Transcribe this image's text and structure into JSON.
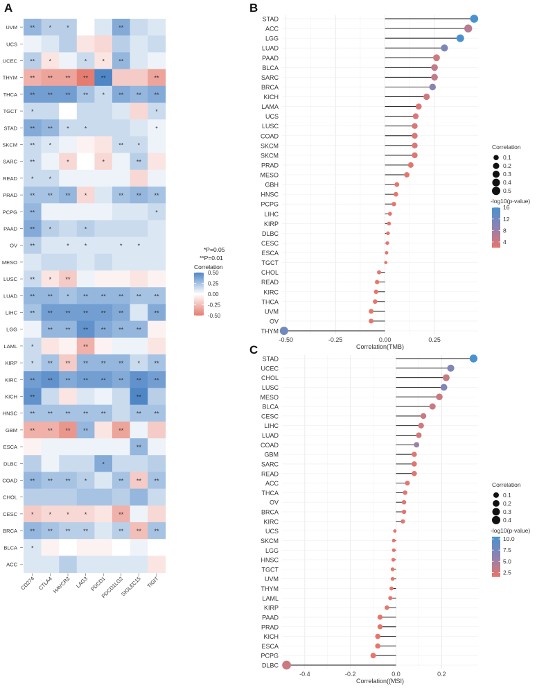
{
  "panel_letters": [
    "A",
    "B",
    "C"
  ],
  "chart_data": [
    {
      "panel": "A",
      "type": "heatmap",
      "rows": [
        "UVM",
        "UCS",
        "UCEC",
        "THYM",
        "THCA",
        "TGCT",
        "STAD",
        "SKCM",
        "SARC",
        "READ",
        "PRAD",
        "PCPG",
        "PAAD",
        "OV",
        "MESO",
        "LUSC",
        "LUAD",
        "LIHC",
        "LGG",
        "LAML",
        "KIRP",
        "KIRC",
        "KICH",
        "HNSC",
        "GBM",
        "ESCA",
        "DLBC",
        "COAD",
        "CHOL",
        "CESC",
        "BRCA",
        "BLCA",
        "ACC"
      ],
      "columns": [
        "CD274",
        "CTLA4",
        "HAVCR2",
        "LAG3",
        "PDCD1",
        "PDCD1LG2",
        "SIGLEC15",
        "TIGIT"
      ],
      "values": [
        [
          0.3,
          0.2,
          0.2,
          0.0,
          0.1,
          0.35,
          0.15,
          0.1
        ],
        [
          0.05,
          0.1,
          0.2,
          -0.1,
          -0.15,
          0.2,
          0.1,
          0.15
        ],
        [
          0.2,
          -0.1,
          0.05,
          0.15,
          -0.1,
          0.3,
          0.1,
          0.05
        ],
        [
          -0.3,
          -0.35,
          -0.35,
          -0.5,
          0.55,
          -0.2,
          -0.2,
          -0.35
        ],
        [
          0.4,
          0.4,
          0.4,
          0.25,
          0.15,
          0.35,
          0.3,
          0.35
        ],
        [
          0.15,
          0.15,
          0.0,
          0.15,
          0.15,
          0.1,
          -0.15,
          0.15
        ],
        [
          0.35,
          0.3,
          0.15,
          0.15,
          0.15,
          0.15,
          0.1,
          0.05
        ],
        [
          0.15,
          0.1,
          0.05,
          -0.05,
          -0.1,
          0.15,
          0.15,
          0.05
        ],
        [
          0.15,
          0.05,
          -0.15,
          0.0,
          -0.15,
          0.05,
          0.2,
          -0.1
        ],
        [
          0.15,
          0.15,
          0.05,
          0.05,
          0.05,
          0.05,
          -0.15,
          0.05
        ],
        [
          0.25,
          0.25,
          0.3,
          -0.15,
          0.1,
          0.25,
          0.3,
          0.25
        ],
        [
          0.3,
          0.05,
          0.05,
          0.05,
          0.05,
          0.1,
          0.1,
          0.15
        ],
        [
          0.35,
          0.2,
          0.15,
          0.2,
          0.15,
          0.15,
          0.15,
          0.1
        ],
        [
          0.2,
          0.1,
          0.1,
          0.1,
          0.1,
          0.1,
          0.1,
          0.1
        ],
        [
          0.1,
          0.15,
          0.15,
          0.1,
          0.15,
          0.1,
          0.1,
          0.1
        ],
        [
          0.15,
          -0.1,
          -0.2,
          0.05,
          -0.05,
          -0.05,
          -0.1,
          -0.05
        ],
        [
          0.3,
          0.3,
          0.25,
          0.3,
          0.3,
          0.3,
          0.25,
          0.25
        ],
        [
          0.25,
          0.4,
          0.4,
          0.4,
          0.4,
          0.35,
          0.1,
          0.35
        ],
        [
          0.05,
          0.3,
          0.3,
          0.45,
          0.35,
          0.3,
          0.3,
          -0.05
        ],
        [
          0.15,
          -0.1,
          -0.05,
          -0.3,
          -0.05,
          0.05,
          0.05,
          -0.1
        ],
        [
          0.15,
          0.25,
          -0.2,
          0.3,
          0.3,
          0.3,
          0.15,
          0.25
        ],
        [
          0.4,
          0.45,
          0.35,
          0.4,
          0.4,
          0.35,
          0.45,
          0.4
        ],
        [
          0.45,
          0.15,
          -0.1,
          0.1,
          0.05,
          0.15,
          0.55,
          0.2
        ],
        [
          0.25,
          0.25,
          0.25,
          0.25,
          0.25,
          0.15,
          0.25,
          0.25
        ],
        [
          -0.3,
          -0.3,
          -0.4,
          0.3,
          -0.1,
          -0.35,
          0.05,
          -0.2
        ],
        [
          -0.05,
          0.05,
          0.05,
          0.05,
          0.05,
          0.05,
          0.3,
          0.05
        ],
        [
          0.2,
          0.05,
          0.15,
          0.15,
          0.35,
          0.15,
          0.15,
          0.2
        ],
        [
          0.3,
          0.25,
          0.25,
          0.2,
          0.1,
          0.25,
          -0.2,
          0.25
        ],
        [
          0.2,
          0.2,
          0.2,
          0.25,
          0.25,
          0.2,
          0.3,
          0.15
        ],
        [
          -0.2,
          -0.15,
          -0.15,
          -0.15,
          -0.1,
          -0.3,
          0.05,
          -0.15
        ],
        [
          0.3,
          0.25,
          0.2,
          0.2,
          0.1,
          0.2,
          -0.25,
          0.25
        ],
        [
          0.1,
          -0.05,
          0.0,
          -0.05,
          -0.05,
          0.0,
          0.05,
          0.0
        ],
        [
          0.1,
          0.1,
          0.2,
          0.1,
          0.1,
          0.1,
          0.1,
          -0.1
        ]
      ],
      "significance": [
        [
          "**",
          "*",
          "*",
          "",
          "",
          "**",
          "",
          ""
        ],
        [
          "",
          "",
          "",
          "",
          "",
          "",
          "",
          ""
        ],
        [
          "**",
          "*",
          "",
          "*",
          "*",
          "**",
          "",
          ""
        ],
        [
          "**",
          "**",
          "**",
          "**",
          "**",
          "",
          "",
          "**"
        ],
        [
          "**",
          "**",
          "**",
          "**",
          "*",
          "**",
          "**",
          "**"
        ],
        [
          "*",
          "",
          "",
          "",
          "",
          "",
          "",
          "*"
        ],
        [
          "**",
          "**",
          "*",
          "*",
          "",
          "",
          "",
          "*"
        ],
        [
          "**",
          "*",
          "",
          "",
          "",
          "**",
          "*",
          ""
        ],
        [
          "**",
          "",
          "*",
          "",
          "*",
          "",
          "**",
          ""
        ],
        [
          "*",
          "*",
          "",
          "",
          "",
          "",
          "",
          ""
        ],
        [
          "**",
          "**",
          "**",
          "*",
          "",
          "**",
          "**",
          "**"
        ],
        [
          "**",
          "",
          "",
          "",
          "",
          "",
          "",
          "*"
        ],
        [
          "**",
          "*",
          "",
          "*",
          "",
          "",
          "",
          ""
        ],
        [
          "**",
          "",
          "*",
          "*",
          "",
          "*",
          "*",
          ""
        ],
        [
          "",
          "",
          "",
          "",
          "",
          "",
          "",
          ""
        ],
        [
          "**",
          "*",
          "**",
          "",
          "",
          "",
          "",
          ""
        ],
        [
          "**",
          "**",
          "*",
          "**",
          "**",
          "**",
          "**",
          "**"
        ],
        [
          "**",
          "**",
          "**",
          "**",
          "**",
          "**",
          "",
          "**"
        ],
        [
          "",
          "**",
          "**",
          "**",
          "**",
          "**",
          "**",
          ""
        ],
        [
          "*",
          "",
          "",
          "**",
          "",
          "",
          "",
          ""
        ],
        [
          "*",
          "**",
          "**",
          "**",
          "**",
          "**",
          "*",
          "**"
        ],
        [
          "**",
          "**",
          "**",
          "**",
          "**",
          "**",
          "**",
          "**"
        ],
        [
          "**",
          "",
          "",
          "",
          "",
          "",
          "**",
          ""
        ],
        [
          "**",
          "**",
          "**",
          "**",
          "**",
          "",
          "**",
          "**"
        ],
        [
          "**",
          "**",
          "**",
          "**",
          "",
          "**",
          "",
          ""
        ],
        [
          "",
          "",
          "",
          "",
          "",
          "",
          "**",
          ""
        ],
        [
          "",
          "",
          "",
          "",
          "*",
          "",
          "",
          ""
        ],
        [
          "**",
          "**",
          "**",
          "*",
          "",
          "**",
          "**",
          "**"
        ],
        [
          "",
          "",
          "",
          "",
          "",
          "",
          "",
          ""
        ],
        [
          "*",
          "*",
          "*",
          "*",
          "",
          "**",
          "",
          ""
        ],
        [
          "**",
          "**",
          "**",
          "**",
          "",
          "**",
          "**",
          "**"
        ],
        [
          "*",
          "",
          "",
          "",
          "",
          "",
          "",
          ""
        ],
        [
          "",
          "",
          "",
          "",
          "",
          "",
          "",
          ""
        ]
      ],
      "legend": {
        "notes": [
          "*P=0.05",
          "**P=0.01"
        ],
        "title": "Correlation",
        "ticks": [
          0.5,
          0.25,
          0.0,
          -0.25,
          -0.5
        ],
        "tick_labels": [
          "0.50",
          "0.25",
          "0.00",
          "-0.25",
          "-0.50"
        ],
        "range": [
          -0.5,
          0.5
        ]
      },
      "colors": {
        "low": "#e47d70",
        "mid": "#ffffff",
        "high": "#4f86c6"
      },
      "placement": "left"
    },
    {
      "panel": "B",
      "type": "scatter",
      "style": "lollipop",
      "categories": [
        "STAD",
        "ACC",
        "LGG",
        "LUAD",
        "PAAD",
        "BLCA",
        "SARC",
        "BRCA",
        "KICH",
        "LAMA",
        "UCS",
        "LUSC",
        "COAD",
        "SKCM",
        "SKCM",
        "PRAD",
        "MESO",
        "GBH",
        "HNSC",
        "PCPG",
        "LIHC",
        "KIRP",
        "DLBC",
        "CESC",
        "ESCA",
        "TGCT",
        "CHOL",
        "READ",
        "KIRC",
        "THCA",
        "UVM",
        "OV",
        "THYM"
      ],
      "values": [
        0.45,
        0.42,
        0.38,
        0.3,
        0.26,
        0.25,
        0.25,
        0.24,
        0.21,
        0.17,
        0.155,
        0.15,
        0.15,
        0.15,
        0.15,
        0.13,
        0.11,
        0.06,
        0.055,
        0.045,
        0.025,
        0.02,
        0.015,
        0.012,
        0.008,
        0.004,
        -0.03,
        -0.04,
        -0.045,
        -0.05,
        -0.07,
        -0.07,
        -0.51
      ],
      "neglog10p": [
        16,
        6,
        16,
        11,
        4,
        5,
        5,
        10,
        4,
        3,
        3,
        3,
        3,
        3,
        3,
        2.5,
        2.5,
        2,
        2,
        2,
        2,
        2,
        2,
        2,
        2,
        2,
        2,
        2,
        2,
        2,
        2,
        2,
        12
      ],
      "xlabel": "Correlation(TMB)",
      "xlim": [
        -0.52,
        0.47
      ],
      "xticks": [
        -0.5,
        -0.25,
        0.0,
        0.25
      ],
      "xtick_labels": [
        "-0.50",
        "-0.25",
        "0.00",
        "0.25"
      ],
      "grid": true,
      "size_legend": {
        "title": "Correlation",
        "values": [
          0.1,
          0.2,
          0.3,
          0.4,
          0.5
        ],
        "labels": [
          "0.1",
          "0.2",
          "0.3",
          "0.4",
          "0.5"
        ]
      },
      "color_legend": {
        "title": "-log10(p-value)",
        "range": [
          2,
          16
        ],
        "ticks": [
          16,
          12,
          8,
          4
        ],
        "labels": [
          "16",
          "12",
          "8",
          "4"
        ]
      },
      "placement": "right"
    },
    {
      "panel": "C",
      "type": "scatter",
      "style": "lollipop",
      "categories": [
        "STAD",
        "UCEC",
        "CHOL",
        "LUSC",
        "MESO",
        "BLCA",
        "CESC",
        "LIHC",
        "LUAD",
        "COAD",
        "GBM",
        "SARC",
        "READ",
        "ACC",
        "THCA",
        "OV",
        "BRCA",
        "KIRC",
        "UCS",
        "SKCM",
        "LGG",
        "HNSC",
        "TGCT",
        "UVM",
        "THYM",
        "LAML",
        "KIRP",
        "PAAD",
        "PRAD",
        "KICH",
        "ESCA",
        "PCPG",
        "DLBC"
      ],
      "values": [
        0.34,
        0.24,
        0.22,
        0.21,
        0.19,
        0.16,
        0.12,
        0.11,
        0.1,
        0.09,
        0.08,
        0.08,
        0.08,
        0.05,
        0.04,
        0.035,
        0.035,
        0.03,
        -0.005,
        -0.01,
        -0.01,
        -0.012,
        -0.015,
        -0.015,
        -0.02,
        -0.025,
        -0.04,
        -0.07,
        -0.07,
        -0.08,
        -0.08,
        -0.1,
        -0.48
      ],
      "neglog10p": [
        10.5,
        7,
        3,
        7,
        3,
        3,
        3,
        2.5,
        2.5,
        5.5,
        2,
        2,
        2,
        2,
        2,
        2,
        2,
        2,
        1.5,
        1.5,
        1.5,
        1.5,
        1.5,
        1.5,
        1.5,
        1.5,
        1.5,
        1.5,
        1.5,
        1.5,
        1.5,
        1.5,
        3
      ],
      "xlabel": "Correlation((MSI)",
      "xlim": [
        -0.5,
        0.36
      ],
      "xticks": [
        -0.4,
        -0.2,
        0.0,
        0.2
      ],
      "xtick_labels": [
        "-0.4",
        "-0.2",
        "0.0",
        "0.2"
      ],
      "grid": true,
      "size_legend": {
        "title": "Correlation",
        "values": [
          0.1,
          0.2,
          0.3,
          0.4
        ],
        "labels": [
          "0.1",
          "0.2",
          "0.3",
          "0.4"
        ]
      },
      "color_legend": {
        "title": "-log10(p-value)",
        "range": [
          1.5,
          10.5
        ],
        "ticks": [
          10,
          7.5,
          5,
          2.5
        ],
        "labels": [
          "10.0",
          "7.5",
          "5.0",
          "2.5"
        ]
      },
      "placement": "right"
    }
  ]
}
